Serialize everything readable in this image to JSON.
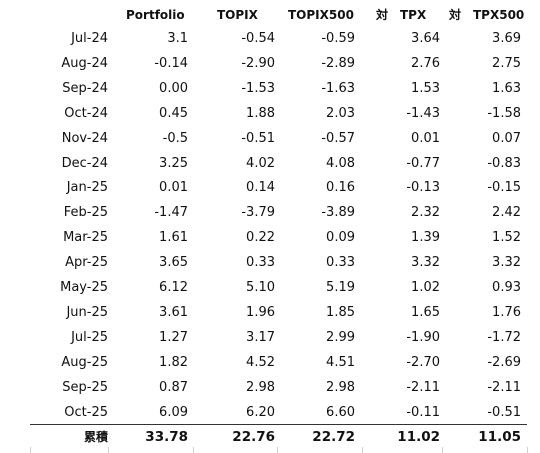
{
  "headers": [
    "Portfolio",
    "TOPIX",
    "TOPIX500",
    "対　TPX",
    "対　TPX500"
  ],
  "rows": [
    {
      "month": "Jul-24",
      "values": [
        "3.1",
        "-0.54",
        "-0.59",
        "3.64",
        "3.69"
      ]
    },
    {
      "month": "Aug-24",
      "values": [
        "-0.14",
        "-2.90",
        "-2.89",
        "2.76",
        "2.75"
      ]
    },
    {
      "month": "Sep-24",
      "values": [
        "0.00",
        "-1.53",
        "-1.63",
        "1.53",
        "1.63"
      ]
    },
    {
      "month": "Oct-24",
      "values": [
        "0.45",
        "1.88",
        "2.03",
        "-1.43",
        "-1.58"
      ]
    },
    {
      "month": "Nov-24",
      "values": [
        "-0.5",
        "-0.51",
        "-0.57",
        "0.01",
        "0.07"
      ]
    },
    {
      "month": "Dec-24",
      "values": [
        "3.25",
        "4.02",
        "4.08",
        "-0.77",
        "-0.83"
      ]
    },
    {
      "month": "Jan-25",
      "values": [
        "0.01",
        "0.14",
        "0.16",
        "-0.13",
        "-0.15"
      ]
    },
    {
      "month": "Feb-25",
      "values": [
        "-1.47",
        "-3.79",
        "-3.89",
        "2.32",
        "2.42"
      ]
    },
    {
      "month": "Mar-25",
      "values": [
        "1.61",
        "0.22",
        "0.09",
        "1.39",
        "1.52"
      ]
    },
    {
      "month": "Apr-25",
      "values": [
        "3.65",
        "0.33",
        "0.33",
        "3.32",
        "3.32"
      ]
    },
    {
      "month": "May-25",
      "values": [
        "6.12",
        "5.10",
        "5.19",
        "1.02",
        "0.93"
      ]
    },
    {
      "month": "Jun-25",
      "values": [
        "3.61",
        "1.96",
        "1.85",
        "1.65",
        "1.76"
      ]
    },
    {
      "month": "Jul-25",
      "values": [
        "1.27",
        "3.17",
        "2.99",
        "-1.90",
        "-1.72"
      ]
    },
    {
      "month": "Aug-25",
      "values": [
        "1.82",
        "4.52",
        "4.51",
        "-2.70",
        "-2.69"
      ]
    },
    {
      "month": "Sep-25",
      "values": [
        "0.87",
        "2.98",
        "2.98",
        "-2.11",
        "-2.11"
      ]
    },
    {
      "month": "Oct-25",
      "values": [
        "6.09",
        "6.20",
        "6.60",
        "-0.11",
        "-0.51"
      ]
    }
  ],
  "total": {
    "label": "累積",
    "values": [
      "33.78",
      "22.76",
      "22.72",
      "11.02",
      "11.05"
    ]
  }
}
